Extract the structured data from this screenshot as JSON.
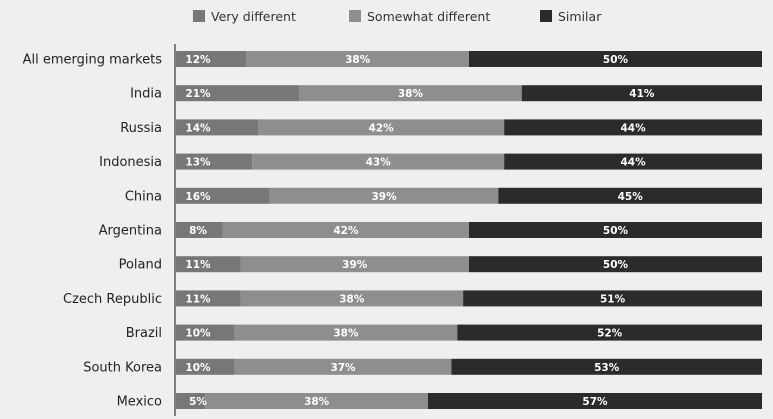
{
  "chart_data": {
    "type": "bar",
    "orientation": "horizontal",
    "stacked": true,
    "categories": [
      "All emerging markets",
      "India",
      "Russia",
      "Indonesia",
      "China",
      "Argentina",
      "Poland",
      "Czech Republic",
      "Brazil",
      "South Korea",
      "Mexico"
    ],
    "series": [
      {
        "name": "Very different",
        "color": "#777777",
        "values": [
          12,
          21,
          14,
          13,
          16,
          8,
          11,
          11,
          10,
          10,
          5
        ]
      },
      {
        "name": "Somewhat different",
        "color": "#8e8e8e",
        "values": [
          38,
          38,
          42,
          43,
          39,
          42,
          39,
          38,
          38,
          37,
          38
        ]
      },
      {
        "name": "Similar",
        "color": "#2b2b2b",
        "values": [
          50,
          41,
          44,
          44,
          45,
          50,
          50,
          51,
          52,
          53,
          57
        ]
      }
    ],
    "value_suffix": "%",
    "xlim": [
      0,
      100
    ],
    "legend_position": "top",
    "grid": false
  }
}
